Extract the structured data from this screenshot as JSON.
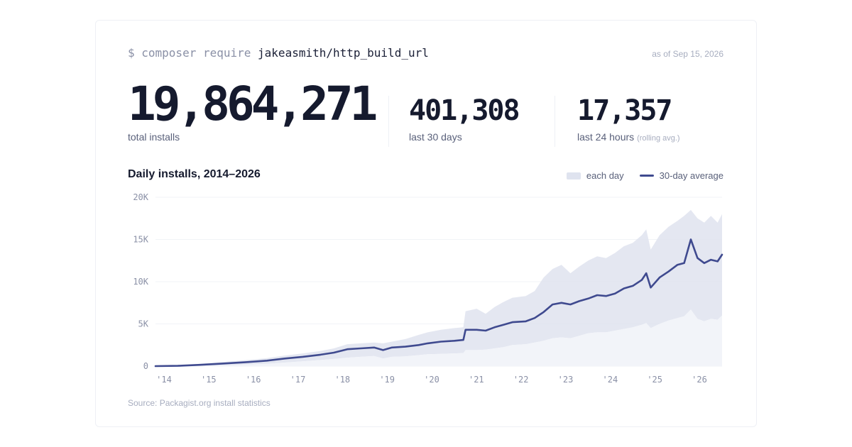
{
  "header": {
    "command_prefix": "$ composer require",
    "package_name": "jakeasmith/http_build_url",
    "as_of": "as of Sep 15, 2026"
  },
  "stats": {
    "total": {
      "value": "19,864,271",
      "label": "total installs"
    },
    "month": {
      "value": "401,308",
      "label": "last 30 days"
    },
    "day": {
      "value": "17,357",
      "label": "last 24 hours",
      "note": "(rolling avg.)"
    }
  },
  "footer": {
    "source": "Source: Packagist.org install statistics"
  },
  "colors": {
    "band": "#dfe3ef",
    "line": "#3f4a8f",
    "axis_text": "#8a90a6",
    "grid": "#f1f3f7"
  },
  "chart_data": {
    "type": "area",
    "title": "Daily installs, 2014–2026",
    "legend": {
      "band": "each day",
      "line": "30-day average",
      "position": "top-right"
    },
    "x_range": [
      2014,
      2026.7
    ],
    "ylim": [
      0,
      20000
    ],
    "y_ticks": [
      {
        "value": 0,
        "label": "0"
      },
      {
        "value": 5000,
        "label": "5K"
      },
      {
        "value": 10000,
        "label": "10K"
      },
      {
        "value": 15000,
        "label": "15K"
      },
      {
        "value": 20000,
        "label": "20K"
      }
    ],
    "x_ticks": [
      {
        "value": 2014,
        "label": "'14"
      },
      {
        "value": 2015,
        "label": "'15"
      },
      {
        "value": 2016,
        "label": "'16"
      },
      {
        "value": 2017,
        "label": "'17"
      },
      {
        "value": 2018,
        "label": "'18"
      },
      {
        "value": 2019,
        "label": "'19"
      },
      {
        "value": 2020,
        "label": "'20"
      },
      {
        "value": 2021,
        "label": "'21"
      },
      {
        "value": 2022,
        "label": "'22"
      },
      {
        "value": 2023,
        "label": "'23"
      },
      {
        "value": 2024,
        "label": "'24"
      },
      {
        "value": 2025,
        "label": "'25"
      },
      {
        "value": 2026,
        "label": "'26"
      }
    ],
    "series": [
      {
        "name": "30-day average",
        "x": [
          2014.0,
          2014.5,
          2015.0,
          2015.5,
          2016.0,
          2016.5,
          2016.9,
          2017.3,
          2017.7,
          2018.0,
          2018.3,
          2018.6,
          2018.9,
          2019.1,
          2019.3,
          2019.6,
          2019.9,
          2020.1,
          2020.4,
          2020.7,
          2020.9,
          2020.95,
          2021.2,
          2021.4,
          2021.6,
          2021.8,
          2022.0,
          2022.3,
          2022.5,
          2022.7,
          2022.9,
          2023.1,
          2023.3,
          2023.5,
          2023.7,
          2023.9,
          2024.1,
          2024.3,
          2024.5,
          2024.7,
          2024.9,
          2025.0,
          2025.1,
          2025.3,
          2025.5,
          2025.7,
          2025.85,
          2026.0,
          2026.15,
          2026.3,
          2026.45,
          2026.6,
          2026.7
        ],
        "values": [
          0,
          30,
          150,
          300,
          450,
          650,
          900,
          1100,
          1350,
          1600,
          2000,
          2100,
          2200,
          1900,
          2200,
          2300,
          2500,
          2700,
          2900,
          3000,
          3100,
          4300,
          4300,
          4200,
          4600,
          4900,
          5200,
          5300,
          5700,
          6400,
          7300,
          7500,
          7300,
          7700,
          8000,
          8400,
          8300,
          8600,
          9200,
          9500,
          10200,
          11000,
          9300,
          10500,
          11200,
          12000,
          12200,
          15000,
          12800,
          12200,
          12600,
          12400,
          13200
        ]
      },
      {
        "name": "each day",
        "x": [
          2014.0,
          2014.5,
          2015.0,
          2015.5,
          2016.0,
          2016.5,
          2016.9,
          2017.3,
          2017.7,
          2018.0,
          2018.3,
          2018.6,
          2018.9,
          2019.1,
          2019.3,
          2019.6,
          2019.9,
          2020.1,
          2020.4,
          2020.7,
          2020.9,
          2020.95,
          2021.2,
          2021.4,
          2021.6,
          2021.8,
          2022.0,
          2022.3,
          2022.5,
          2022.7,
          2022.9,
          2023.1,
          2023.3,
          2023.5,
          2023.7,
          2023.9,
          2024.1,
          2024.3,
          2024.5,
          2024.7,
          2024.9,
          2025.0,
          2025.1,
          2025.3,
          2025.5,
          2025.7,
          2025.85,
          2026.0,
          2026.15,
          2026.3,
          2026.45,
          2026.6,
          2026.7
        ],
        "high": [
          20,
          80,
          280,
          480,
          700,
          950,
          1250,
          1500,
          1800,
          2100,
          2600,
          2700,
          2800,
          2700,
          2900,
          3200,
          3700,
          4000,
          4300,
          4500,
          4600,
          6500,
          6800,
          6200,
          7000,
          7600,
          8100,
          8300,
          8900,
          10500,
          11500,
          12000,
          11000,
          11800,
          12500,
          13000,
          12800,
          13400,
          14200,
          14600,
          15500,
          16200,
          13800,
          15500,
          16500,
          17200,
          17800,
          18500,
          17500,
          17000,
          17800,
          17000,
          18000
        ],
        "low": [
          0,
          0,
          40,
          100,
          180,
          280,
          420,
          560,
          720,
          850,
          1000,
          1100,
          1200,
          900,
          1100,
          1150,
          1300,
          1400,
          1450,
          1500,
          1550,
          1900,
          1900,
          1950,
          2100,
          2250,
          2500,
          2600,
          2800,
          3000,
          3300,
          3400,
          3300,
          3600,
          3900,
          4000,
          4000,
          4200,
          4400,
          4600,
          4900,
          5100,
          4500,
          5000,
          5400,
          5700,
          5900,
          6700,
          5600,
          5300,
          5600,
          5500,
          6000
        ]
      }
    ]
  }
}
